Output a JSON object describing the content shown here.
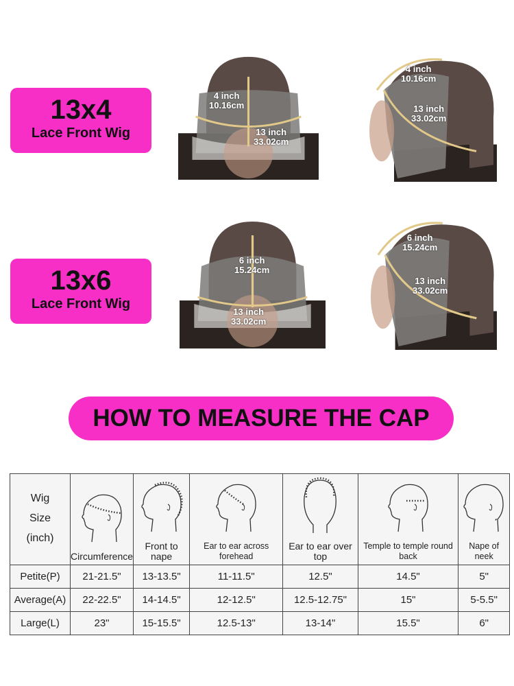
{
  "colors": {
    "accent": "#f72fc6"
  },
  "wigs": [
    {
      "size": "13x4",
      "type": "Lace Front Wig",
      "front": {
        "depth": "4 inch",
        "depth_cm": "10.16cm",
        "width": "13 inch",
        "width_cm": "33.02cm"
      },
      "side": {
        "depth": "4 inch",
        "depth_cm": "10.16cm",
        "width": "13 inch",
        "width_cm": "33.02cm"
      }
    },
    {
      "size": "13x6",
      "type": "Lace Front Wig",
      "front": {
        "depth": "6 inch",
        "depth_cm": "15.24cm",
        "width": "13 inch",
        "width_cm": "33.02cm"
      },
      "side": {
        "depth": "6 inch",
        "depth_cm": "15.24cm",
        "width": "13 inch",
        "width_cm": "33.02cm"
      }
    }
  ],
  "banner": "HOW TO MEASURE THE CAP",
  "table": {
    "corner": [
      "Wig",
      "Size",
      "(inch)"
    ],
    "columns": [
      "Circumference",
      "Front to nape",
      "Ear to ear across forehead",
      "Ear to ear over top",
      "Temple to temple round back",
      "Nape of neek"
    ],
    "rows": [
      {
        "size": "Petite(P)",
        "values": [
          "21-21.5\"",
          "13-13.5\"",
          "11-11.5\"",
          "12.5\"",
          "14.5\"",
          "5\""
        ]
      },
      {
        "size": "Average(A)",
        "values": [
          "22-22.5\"",
          "14-14.5\"",
          "12-12.5\"",
          "12.5-12.75\"",
          "15\"",
          "5-5.5\""
        ]
      },
      {
        "size": "Large(L)",
        "values": [
          "23\"",
          "15-15.5\"",
          "12.5-13\"",
          "13-14\"",
          "15.5\"",
          "6\""
        ]
      }
    ]
  }
}
